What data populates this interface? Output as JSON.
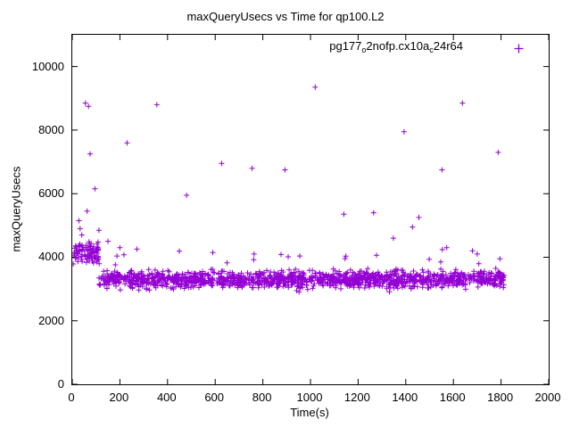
{
  "title": "maxQueryUsecs vs Time for qp100.L2",
  "axes": {
    "xlabel": "Time(s)",
    "ylabel": "maxQueryUsecs",
    "xticks": [
      0,
      200,
      400,
      600,
      800,
      1000,
      1200,
      1400,
      1600,
      1800,
      2000
    ],
    "yticks": [
      0,
      2000,
      4000,
      6000,
      8000,
      10000
    ],
    "xlim": [
      0,
      2000
    ],
    "ylim": [
      0,
      11000
    ]
  },
  "legend": {
    "name": "pg177_o2nofp.cx10a_c24r64",
    "parts": [
      {
        "text": "pg177",
        "sub": false
      },
      {
        "text": "o",
        "sub": true
      },
      {
        "text": "2nofp.cx10a",
        "sub": false
      },
      {
        "text": "c",
        "sub": true
      },
      {
        "text": "24r64",
        "sub": false
      }
    ]
  },
  "chart_data": {
    "type": "scatter",
    "title": "maxQueryUsecs vs Time for qp100.L2",
    "xlabel": "Time(s)",
    "ylabel": "maxQueryUsecs",
    "xlim": [
      0,
      2000
    ],
    "ylim": [
      0,
      11000
    ],
    "grid": false,
    "legend_position": "top-right",
    "marker": "plus",
    "color": "#9400D3",
    "series": [
      {
        "name": "pg177_o2nofp.cx10a_c24r64",
        "description": "Dense band of per-interval max query latencies around 2800-4200 usecs for t=0..1810s, higher during first ~110s (4000-5200), with sparse outliers listed below.",
        "outliers": [
          [
            28,
            5150
          ],
          [
            33,
            4900
          ],
          [
            40,
            4700
          ],
          [
            55,
            8850
          ],
          [
            68,
            8750
          ],
          [
            62,
            5450
          ],
          [
            75,
            7250
          ],
          [
            95,
            6150
          ],
          [
            112,
            4850
          ],
          [
            150,
            4500
          ],
          [
            200,
            4300
          ],
          [
            230,
            7600
          ],
          [
            355,
            8800
          ],
          [
            480,
            5950
          ],
          [
            627,
            6950
          ],
          [
            755,
            6800
          ],
          [
            893,
            6750
          ],
          [
            1020,
            9350
          ],
          [
            1140,
            5350
          ],
          [
            1265,
            5400
          ],
          [
            1348,
            4600
          ],
          [
            1393,
            7950
          ],
          [
            1428,
            4950
          ],
          [
            1455,
            5250
          ],
          [
            1552,
            6750
          ],
          [
            1572,
            4300
          ],
          [
            1638,
            8850
          ],
          [
            1680,
            4200
          ],
          [
            1700,
            4100
          ],
          [
            1788,
            7300
          ],
          [
            1795,
            3950
          ]
        ],
        "band": {
          "count": 1500,
          "x_min": 4,
          "x_max": 1815,
          "y_mean": 3300,
          "y_spread": 320,
          "y_min": 2550,
          "y_max": 4450,
          "early_x_max": 112,
          "early_y_mean": 4150,
          "early_y_spread": 430,
          "early_y_min": 3000,
          "early_y_max": 5200,
          "high_fraction": 0.02,
          "seed": 42
        }
      }
    ]
  }
}
